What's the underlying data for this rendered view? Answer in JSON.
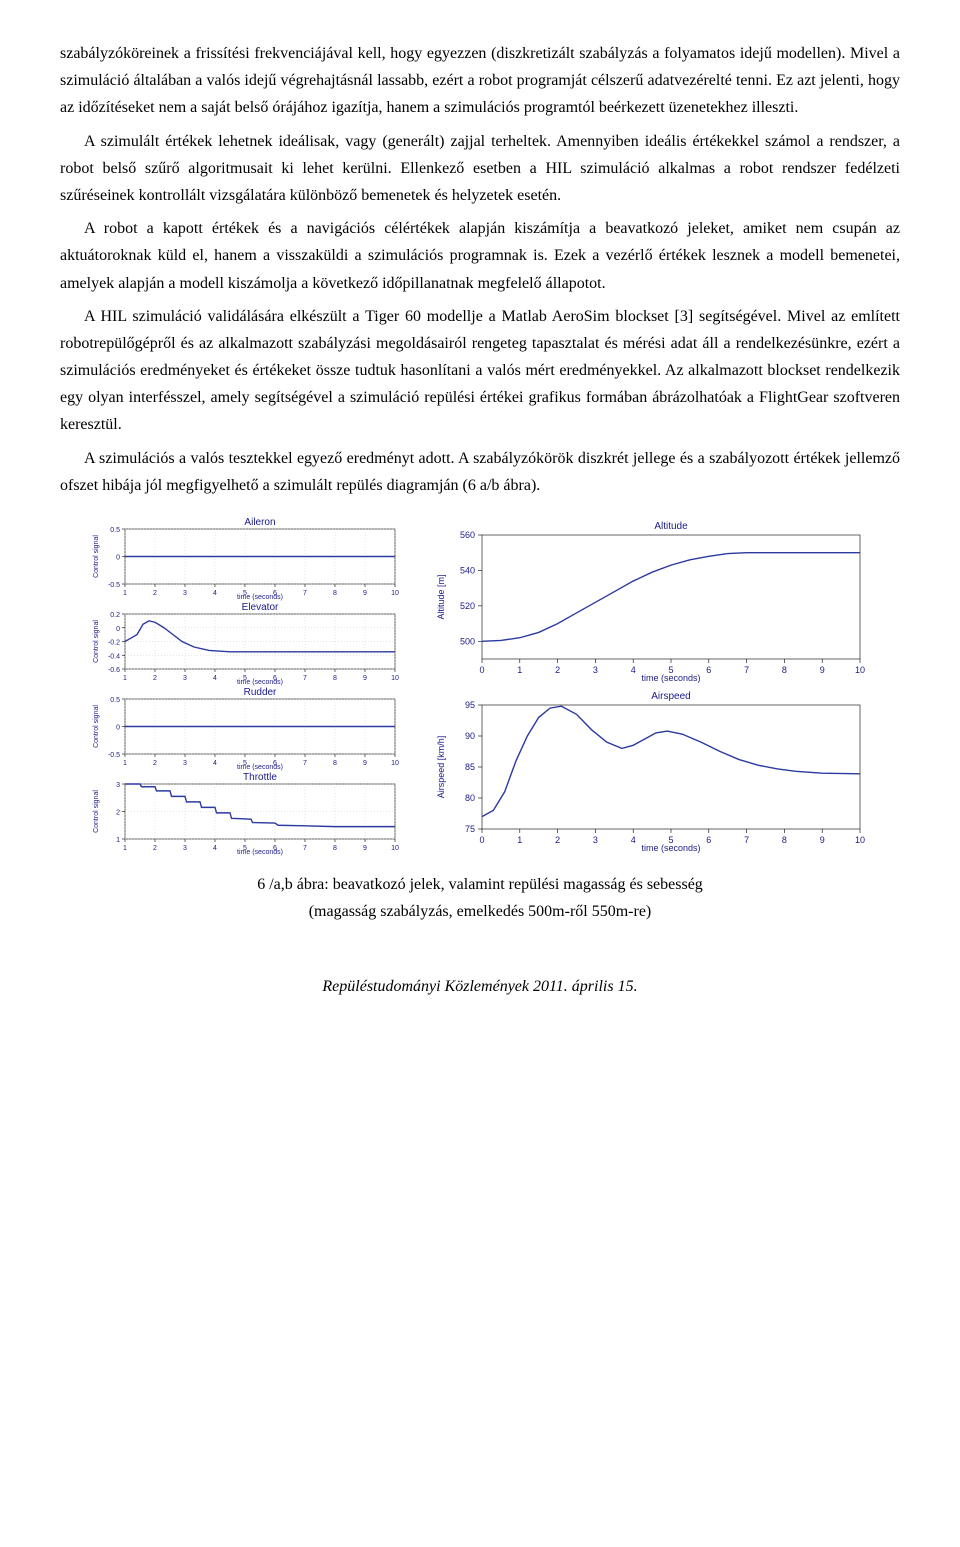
{
  "paragraphs": {
    "p1": "szabályzóköreinek a frissítési frekvenciájával kell, hogy egyezzen (diszkretizált szabályzás a folyamatos idejű modellen). Mivel a szimuláció általában a valós idejű végrehajtásnál lassabb, ezért a robot programját célszerű adatvezérelté tenni. Ez azt jelenti, hogy az időzítéseket nem a saját belső órájához igazítja, hanem a szimulációs programtól beérkezett üzenetekhez illeszti.",
    "p2": "A szimulált értékek lehetnek ideálisak, vagy (generált) zajjal terheltek. Amennyiben ideális értékekkel számol a rendszer, a robot belső szűrő algoritmusait ki lehet kerülni. Ellenkező esetben a HIL szimuláció alkalmas a robot rendszer fedélzeti szűréseinek kontrollált vizsgálatára különböző bemenetek és helyzetek esetén.",
    "p3": "A robot a kapott értékek és a navigációs célértékek alapján kiszámítja a beavatkozó jeleket, amiket nem csupán az aktuátoroknak küld el, hanem a visszaküldi a szimulációs programnak is. Ezek a vezérlő értékek lesznek a modell bemenetei, amelyek alapján a modell kiszámolja a következő időpillanatnak megfelelő állapotot.",
    "p4": "A HIL szimuláció validálására elkészült a Tiger 60 modellje a Matlab AeroSim blockset [3] segítségével. Mivel az említett robotrepülőgépről és az alkalmazott szabályzási megoldásairól rengeteg tapasztalat és mérési adat áll a rendelkezésünkre, ezért a szimulációs eredményeket és értékeket össze tudtuk hasonlítani a valós mért eredményekkel. Az alkalmazott blockset rendelkezik egy olyan interfésszel, amely segítségével a szimuláció repülési értékei grafikus formában ábrázolhatóak a FlightGear szoftveren keresztül.",
    "p5": "A szimulációs a valós tesztekkel egyező eredményt adott. A szabályzókörök diszkrét jellege és a szabályozott értékek jellemző ofszet hibája jól megfigyelhető a szimulált repülés diagramján (6 a/b ábra)."
  },
  "caption": {
    "line1": "6 /a,b ábra: beavatkozó jelek, valamint repülési magasság és sebesség",
    "line2": "(magasság szabályzás, emelkedés 500m-ről 550m-re)"
  },
  "footer": "Repüléstudományi Közlemények 2011. április 15.",
  "left_charts": {
    "common": {
      "xlabel": "time (seconds)",
      "ylabel": "Control signal",
      "xlim": [
        1,
        10
      ],
      "xticks": [
        1,
        2,
        3,
        4,
        5,
        6,
        7,
        8,
        9,
        10
      ],
      "line_color": "#2a3aa0",
      "grid_color": "#c8c8c8",
      "title_fontsize": 8,
      "label_fontsize": 7,
      "tick_fontsize": 7
    },
    "panels": [
      {
        "title": "Aileron",
        "ylim": [
          -0.5,
          0.5
        ],
        "yticks": [
          -0.5,
          0,
          0.5
        ],
        "data": [
          [
            1,
            0
          ],
          [
            10,
            0
          ]
        ]
      },
      {
        "title": "Elevator",
        "ylim": [
          -0.6,
          0.2
        ],
        "yticks": [
          -0.6,
          -0.4,
          -0.2,
          0,
          0.2
        ],
        "data": [
          [
            1,
            -0.2
          ],
          [
            1.2,
            -0.15
          ],
          [
            1.4,
            -0.1
          ],
          [
            1.6,
            0.05
          ],
          [
            1.8,
            0.1
          ],
          [
            2.0,
            0.08
          ],
          [
            2.3,
            0.0
          ],
          [
            2.6,
            -0.1
          ],
          [
            2.9,
            -0.2
          ],
          [
            3.3,
            -0.28
          ],
          [
            3.8,
            -0.33
          ],
          [
            4.5,
            -0.35
          ],
          [
            5.5,
            -0.35
          ],
          [
            7,
            -0.35
          ],
          [
            10,
            -0.35
          ]
        ]
      },
      {
        "title": "Rudder",
        "ylim": [
          -0.5,
          0.5
        ],
        "yticks": [
          -0.5,
          0,
          0.5
        ],
        "data": [
          [
            1,
            0
          ],
          [
            10,
            0
          ]
        ]
      },
      {
        "title": "Throttle",
        "ylim": [
          1,
          3
        ],
        "yticks": [
          1,
          2,
          3
        ],
        "data": [
          [
            1,
            3
          ],
          [
            1.5,
            3
          ],
          [
            1.55,
            2.9
          ],
          [
            2.0,
            2.9
          ],
          [
            2.05,
            2.75
          ],
          [
            2.5,
            2.75
          ],
          [
            2.55,
            2.55
          ],
          [
            3.0,
            2.55
          ],
          [
            3.05,
            2.35
          ],
          [
            3.5,
            2.35
          ],
          [
            3.55,
            2.15
          ],
          [
            4.0,
            2.15
          ],
          [
            4.05,
            1.95
          ],
          [
            4.5,
            1.95
          ],
          [
            4.55,
            1.75
          ],
          [
            5.2,
            1.72
          ],
          [
            5.25,
            1.6
          ],
          [
            6.0,
            1.58
          ],
          [
            6.1,
            1.5
          ],
          [
            7.0,
            1.48
          ],
          [
            8,
            1.45
          ],
          [
            10,
            1.45
          ]
        ]
      }
    ]
  },
  "right_charts": {
    "altitude": {
      "title": "Altitude",
      "xlabel": "time (seconds)",
      "ylabel": "Altitude [m]",
      "xlim": [
        0,
        10
      ],
      "xticks": [
        0,
        1,
        2,
        3,
        4,
        5,
        6,
        7,
        8,
        9,
        10
      ],
      "ylim": [
        490,
        560
      ],
      "yticks": [
        500,
        520,
        540,
        560
      ],
      "yticklabels": [
        "500",
        "520",
        "540",
        "560"
      ],
      "line_color": "#2a3aa0",
      "data": [
        [
          0,
          500
        ],
        [
          0.5,
          500.5
        ],
        [
          1,
          502
        ],
        [
          1.5,
          505
        ],
        [
          2,
          510
        ],
        [
          2.5,
          516
        ],
        [
          3,
          522
        ],
        [
          3.5,
          528
        ],
        [
          4,
          534
        ],
        [
          4.5,
          539
        ],
        [
          5,
          543
        ],
        [
          5.5,
          546
        ],
        [
          6,
          548
        ],
        [
          6.5,
          549.5
        ],
        [
          7,
          550
        ],
        [
          8,
          550
        ],
        [
          9,
          550
        ],
        [
          10,
          550
        ]
      ]
    },
    "airspeed": {
      "title": "Airspeed",
      "xlabel": "time (seconds)",
      "ylabel": "Airspeed [km/h]",
      "xlim": [
        0,
        10
      ],
      "xticks": [
        0,
        1,
        2,
        3,
        4,
        5,
        6,
        7,
        8,
        9,
        10
      ],
      "ylim": [
        75,
        95
      ],
      "yticks": [
        75,
        80,
        85,
        90,
        95
      ],
      "line_color": "#2a3aa0",
      "data": [
        [
          0,
          77
        ],
        [
          0.3,
          78
        ],
        [
          0.6,
          81
        ],
        [
          0.9,
          86
        ],
        [
          1.2,
          90
        ],
        [
          1.5,
          93
        ],
        [
          1.8,
          94.5
        ],
        [
          2.1,
          94.8
        ],
        [
          2.5,
          93.5
        ],
        [
          2.9,
          91
        ],
        [
          3.3,
          89
        ],
        [
          3.7,
          88
        ],
        [
          4.0,
          88.5
        ],
        [
          4.3,
          89.5
        ],
        [
          4.6,
          90.5
        ],
        [
          4.9,
          90.8
        ],
        [
          5.3,
          90.3
        ],
        [
          5.8,
          89
        ],
        [
          6.3,
          87.5
        ],
        [
          6.8,
          86.2
        ],
        [
          7.3,
          85.3
        ],
        [
          7.8,
          84.7
        ],
        [
          8.3,
          84.3
        ],
        [
          9,
          84
        ],
        [
          10,
          83.9
        ]
      ]
    }
  }
}
